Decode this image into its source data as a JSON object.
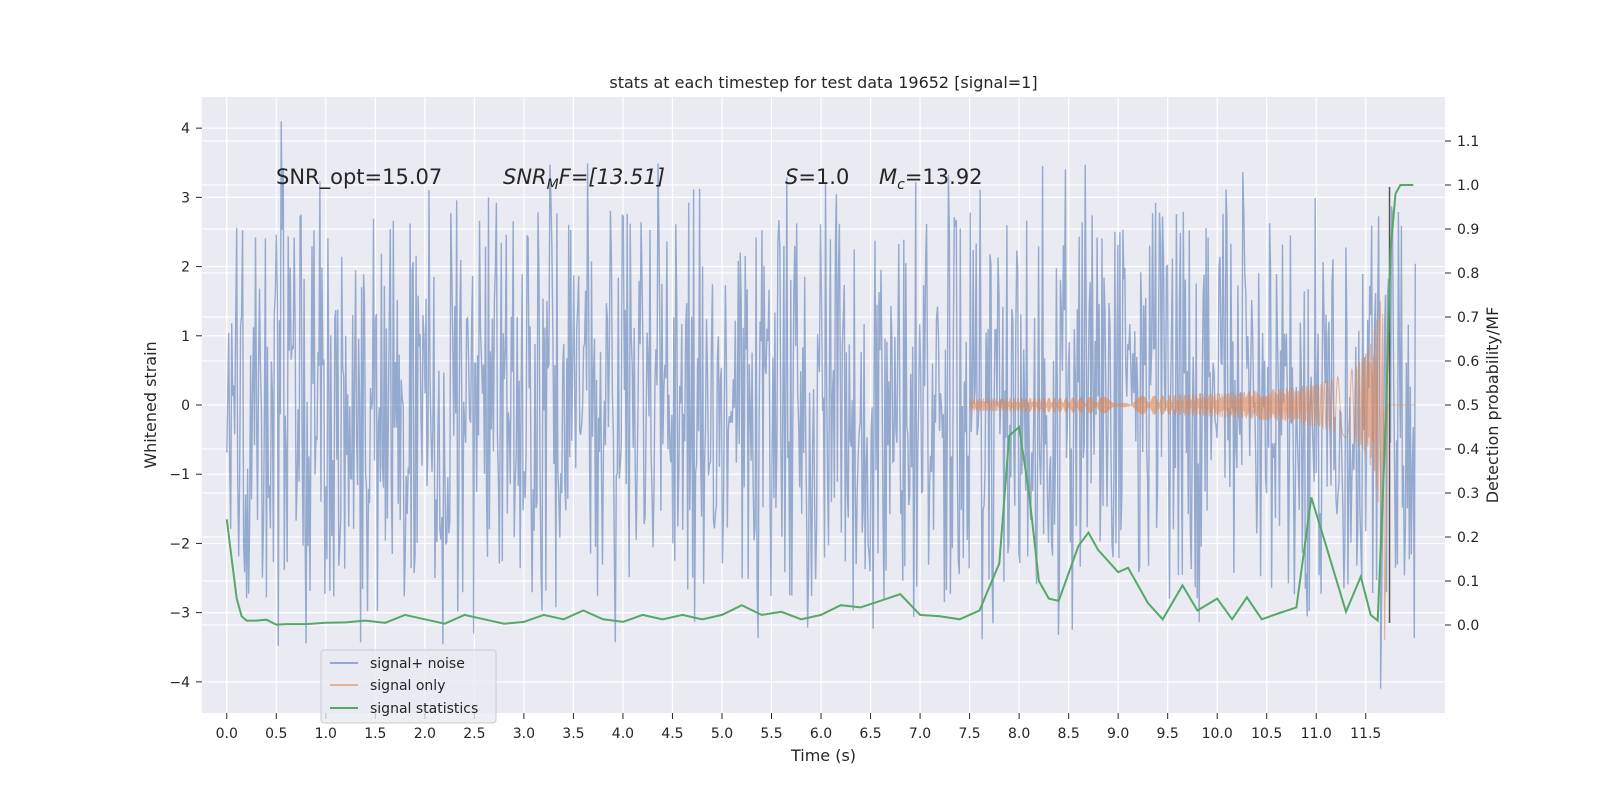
{
  "chart_data": {
    "type": "line",
    "title": "stats at each timestep for test data 19652 [signal=1]",
    "xlabel": "Time (s)",
    "ylabel": "Whitened strain",
    "y2label": "Detection probability/MF",
    "xlim": [
      -0.25,
      12.3
    ],
    "ylim": [
      -4.45,
      4.45
    ],
    "y2lim": [
      -0.2,
      1.2
    ],
    "x_ticks": [
      0.0,
      0.5,
      1.0,
      1.5,
      2.0,
      2.5,
      3.0,
      3.5,
      4.0,
      4.5,
      5.0,
      5.5,
      6.0,
      6.5,
      7.0,
      7.5,
      8.0,
      8.5,
      9.0,
      9.5,
      10.0,
      10.5,
      11.0,
      11.5
    ],
    "x_tick_labels": [
      "0.0",
      "0.5",
      "1.0",
      "1.5",
      "2.0",
      "2.5",
      "3.0",
      "3.5",
      "4.0",
      "4.5",
      "5.0",
      "5.5",
      "6.0",
      "6.5",
      "7.0",
      "7.5",
      "8.0",
      "8.5",
      "9.0",
      "9.5",
      "10.0",
      "10.5",
      "11.0",
      "11.5"
    ],
    "y_ticks": [
      -4,
      -3,
      -2,
      -1,
      0,
      1,
      2,
      3,
      4
    ],
    "y_tick_labels": [
      "−4",
      "−3",
      "−2",
      "−1",
      "0",
      "1",
      "2",
      "3",
      "4"
    ],
    "y2_ticks": [
      0.0,
      0.1,
      0.2,
      0.3,
      0.4,
      0.5,
      0.6,
      0.7,
      0.8,
      0.9,
      1.0,
      1.1
    ],
    "y2_tick_labels": [
      "0.0",
      "0.1",
      "0.2",
      "0.3",
      "0.4",
      "0.5",
      "0.6",
      "0.7",
      "0.8",
      "0.9",
      "1.0",
      "1.1"
    ],
    "annotations": {
      "snr_opt": "SNR_opt=15.07",
      "snr_mf_main": "SNR",
      "snr_mf_sub": "M",
      "snr_mf_rest": "F=[13.51]",
      "s_main": "S",
      "s_rest": "=1.0",
      "mc_main": "M",
      "mc_sub": "c",
      "mc_rest": "=13.92"
    },
    "noise": {
      "name": "signal+ noise",
      "color": "#4c72b0",
      "t_start": 0.0,
      "t_end": 12.0,
      "core_band": 1.3,
      "typical_peak": 2.2,
      "max_value": 4.1,
      "min_value": -4.1
    },
    "signal": {
      "name": "signal only",
      "color": "#dd8452",
      "t_start": 7.5,
      "t_merger": 11.68,
      "peak_amplitude": 2.4,
      "min_value": -3.4
    },
    "statistics": {
      "name": "signal statistics",
      "color": "#55a868",
      "t": [
        0.0,
        0.05,
        0.1,
        0.15,
        0.2,
        0.3,
        0.4,
        0.5,
        0.6,
        0.8,
        1.0,
        1.2,
        1.4,
        1.6,
        1.8,
        2.0,
        2.2,
        2.4,
        2.6,
        2.8,
        3.0,
        3.2,
        3.4,
        3.6,
        3.8,
        4.0,
        4.2,
        4.4,
        4.6,
        4.8,
        5.0,
        5.2,
        5.4,
        5.6,
        5.8,
        6.0,
        6.2,
        6.4,
        6.6,
        6.8,
        7.0,
        7.2,
        7.4,
        7.6,
        7.8,
        7.9,
        8.0,
        8.1,
        8.2,
        8.3,
        8.4,
        8.6,
        8.7,
        8.8,
        9.0,
        9.1,
        9.3,
        9.45,
        9.65,
        9.8,
        10.0,
        10.15,
        10.3,
        10.45,
        10.6,
        10.8,
        10.95,
        11.1,
        11.3,
        11.45,
        11.55,
        11.62,
        11.7,
        11.75,
        11.8,
        11.85,
        11.9,
        11.98
      ],
      "values": [
        0.24,
        0.15,
        0.06,
        0.02,
        0.01,
        0.01,
        0.012,
        0.001,
        0.002,
        0.002,
        0.005,
        0.006,
        0.01,
        0.005,
        0.023,
        0.013,
        0.003,
        0.023,
        0.013,
        0.003,
        0.007,
        0.023,
        0.013,
        0.033,
        0.013,
        0.007,
        0.023,
        0.013,
        0.023,
        0.013,
        0.023,
        0.045,
        0.023,
        0.03,
        0.013,
        0.023,
        0.045,
        0.04,
        0.055,
        0.07,
        0.023,
        0.02,
        0.013,
        0.033,
        0.14,
        0.43,
        0.45,
        0.3,
        0.1,
        0.06,
        0.055,
        0.18,
        0.21,
        0.17,
        0.12,
        0.13,
        0.05,
        0.013,
        0.09,
        0.033,
        0.06,
        0.013,
        0.063,
        0.013,
        0.025,
        0.04,
        0.29,
        0.18,
        0.03,
        0.11,
        0.023,
        0.01,
        0.45,
        0.85,
        0.98,
        1.0,
        1.0,
        1.0
      ]
    },
    "marker_line": {
      "color": "#555555",
      "t": 11.74,
      "top": 3.15,
      "bottom": -3.15
    },
    "legend": [
      "signal+ noise",
      "signal only",
      "signal statistics"
    ],
    "legend_position": "lower-left",
    "grid": true
  }
}
